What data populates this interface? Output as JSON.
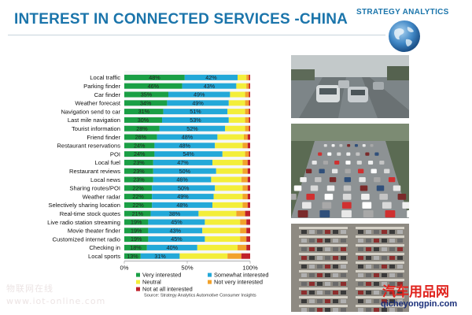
{
  "slide": {
    "title": "INTEREST IN CONNECTED SERVICES -CHINA",
    "brand": "STRATEGY ANALYTICS",
    "source": "Source: Strategy Analytics Automotive Consumer Insights",
    "watermark_cn": "物联网在线",
    "watermark_url": "www.iot-online.com",
    "site_cn": "汽车用品网",
    "site_url": "qicheyongpin.com"
  },
  "colors": {
    "title": "#1b75ab",
    "very_interested": "#1a9f45",
    "somewhat_interested": "#23a8d8",
    "neutral": "#f3ee3a",
    "not_very_interested": "#f2a22b",
    "not_at_all_interested": "#c0202a"
  },
  "chart_data": {
    "type": "bar",
    "orientation": "horizontal",
    "stacked": true,
    "categories": [
      "Local traffic",
      "Parking finder",
      "Car finder",
      "Weather forecast",
      "Navigation send to car",
      "Last mile navigation",
      "Tourist information",
      "Friend finder",
      "Restaurant reservations",
      "POI",
      "Local fuel",
      "Restaurant reviews",
      "Local news",
      "Sharing routes/POI",
      "Weather radar",
      "Selectively sharing  location",
      "Real-time stock quotes",
      "Live radio station streaming",
      "Movie theater finder",
      "Customized internet radio",
      "Checking in",
      "Local sports"
    ],
    "series": [
      {
        "name": "Very interested",
        "values": [
          48,
          46,
          35,
          34,
          31,
          30,
          28,
          26,
          24,
          24,
          23,
          23,
          23,
          22,
          22,
          22,
          21,
          19,
          19,
          19,
          18,
          13
        ],
        "labels": [
          "48%",
          "46%",
          "35%",
          "34%",
          "31%",
          "30%",
          "28%",
          "26%",
          "24%",
          "24%",
          "23%",
          "23%",
          "23%",
          "22%",
          "22%",
          "22%",
          "21%",
          "19%",
          "19%",
          "19%",
          "18%",
          "13%"
        ]
      },
      {
        "name": "Somewhat interested",
        "values": [
          42,
          43,
          49,
          49,
          51,
          53,
          52,
          48,
          48,
          54,
          47,
          50,
          46,
          50,
          49,
          48,
          38,
          45,
          43,
          45,
          40,
          31
        ],
        "labels": [
          "42%",
          "43%",
          "49%",
          "49%",
          "51%",
          "53%",
          "52%",
          "48%",
          "48%",
          "54%",
          "47%",
          "50%",
          "46%",
          "50%",
          "49%",
          "48%",
          "38%",
          "45%",
          "43%",
          "45%",
          "40%",
          "31%"
        ]
      },
      {
        "name": "Neutral",
        "values": [
          7,
          8,
          12,
          13,
          14,
          13,
          16,
          21,
          22,
          18,
          24,
          21,
          24,
          22,
          23,
          24,
          30,
          28,
          30,
          28,
          32,
          38
        ]
      },
      {
        "name": "Not very interested",
        "values": [
          2,
          2,
          3,
          3,
          3,
          3,
          3,
          3,
          4,
          3,
          4,
          4,
          5,
          4,
          4,
          4,
          7,
          5,
          5,
          5,
          7,
          11
        ]
      },
      {
        "name": "Not at all interested",
        "values": [
          1,
          1,
          1,
          1,
          1,
          1,
          1,
          2,
          2,
          1,
          2,
          2,
          2,
          2,
          2,
          2,
          4,
          3,
          3,
          3,
          3,
          7
        ]
      }
    ],
    "x_ticks": [
      "0%",
      "50%",
      "100%"
    ],
    "xlim": [
      0,
      100
    ],
    "legend": {
      "placement": "bottom",
      "items": [
        "Very interested",
        "Somewhat interested",
        "Neutral",
        "Not very interested",
        "Not at all interested"
      ]
    }
  }
}
